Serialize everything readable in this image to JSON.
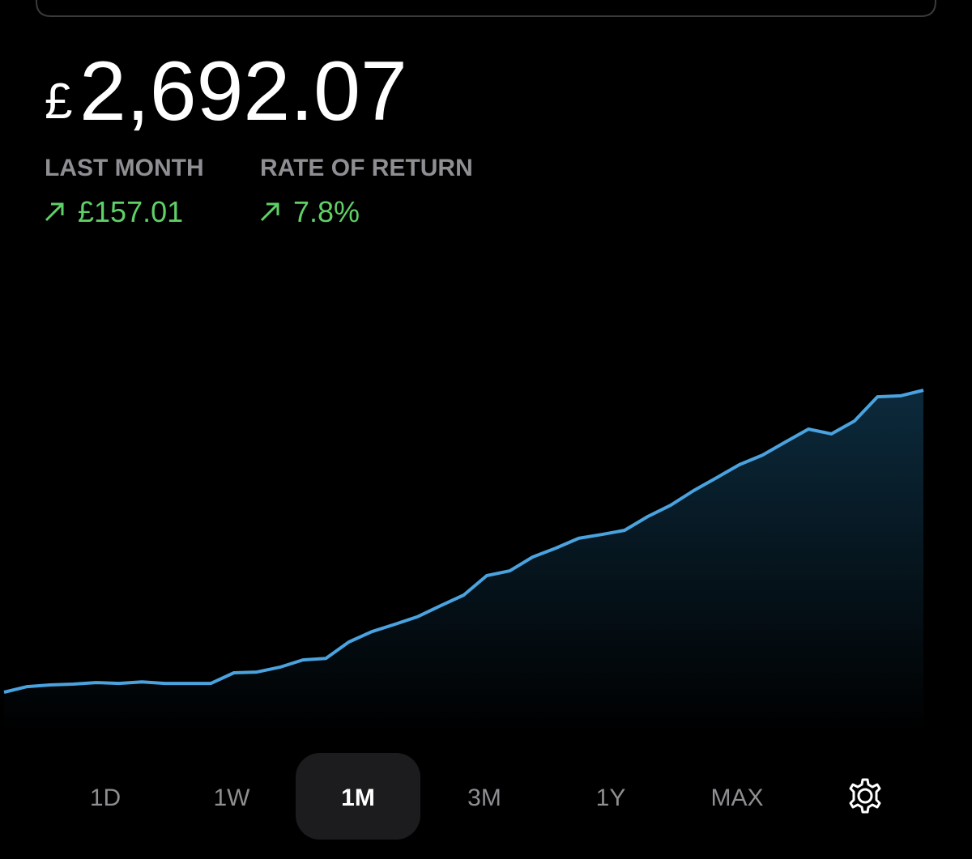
{
  "header": {
    "currency": "£",
    "amount": "2,692.07"
  },
  "stats": [
    {
      "label": "LAST MONTH",
      "value": "£157.01"
    },
    {
      "label": "RATE OF RETURN",
      "value": "7.8%"
    }
  ],
  "chart_data": {
    "type": "line",
    "color": "#4aa3df",
    "values": [
      2535.1,
      2538.0,
      2538.9,
      2539.3,
      2540.1,
      2539.7,
      2540.5,
      2539.7,
      2539.7,
      2539.7,
      2545.2,
      2545.6,
      2548.1,
      2551.9,
      2552.7,
      2561.2,
      2566.6,
      2570.4,
      2574.4,
      2580.1,
      2585.6,
      2595.7,
      2598.2,
      2605.4,
      2610.0,
      2615.1,
      2617.1,
      2619.3,
      2626.4,
      2632.3,
      2639.9,
      2646.6,
      2653.4,
      2658.4,
      2665.2,
      2671.9,
      2669.4,
      2676.1,
      2688.7,
      2689.2,
      2692.1
    ]
  },
  "tabs": [
    "1D",
    "1W",
    "1M",
    "3M",
    "1Y",
    "MAX"
  ],
  "selected_tab": "1M"
}
